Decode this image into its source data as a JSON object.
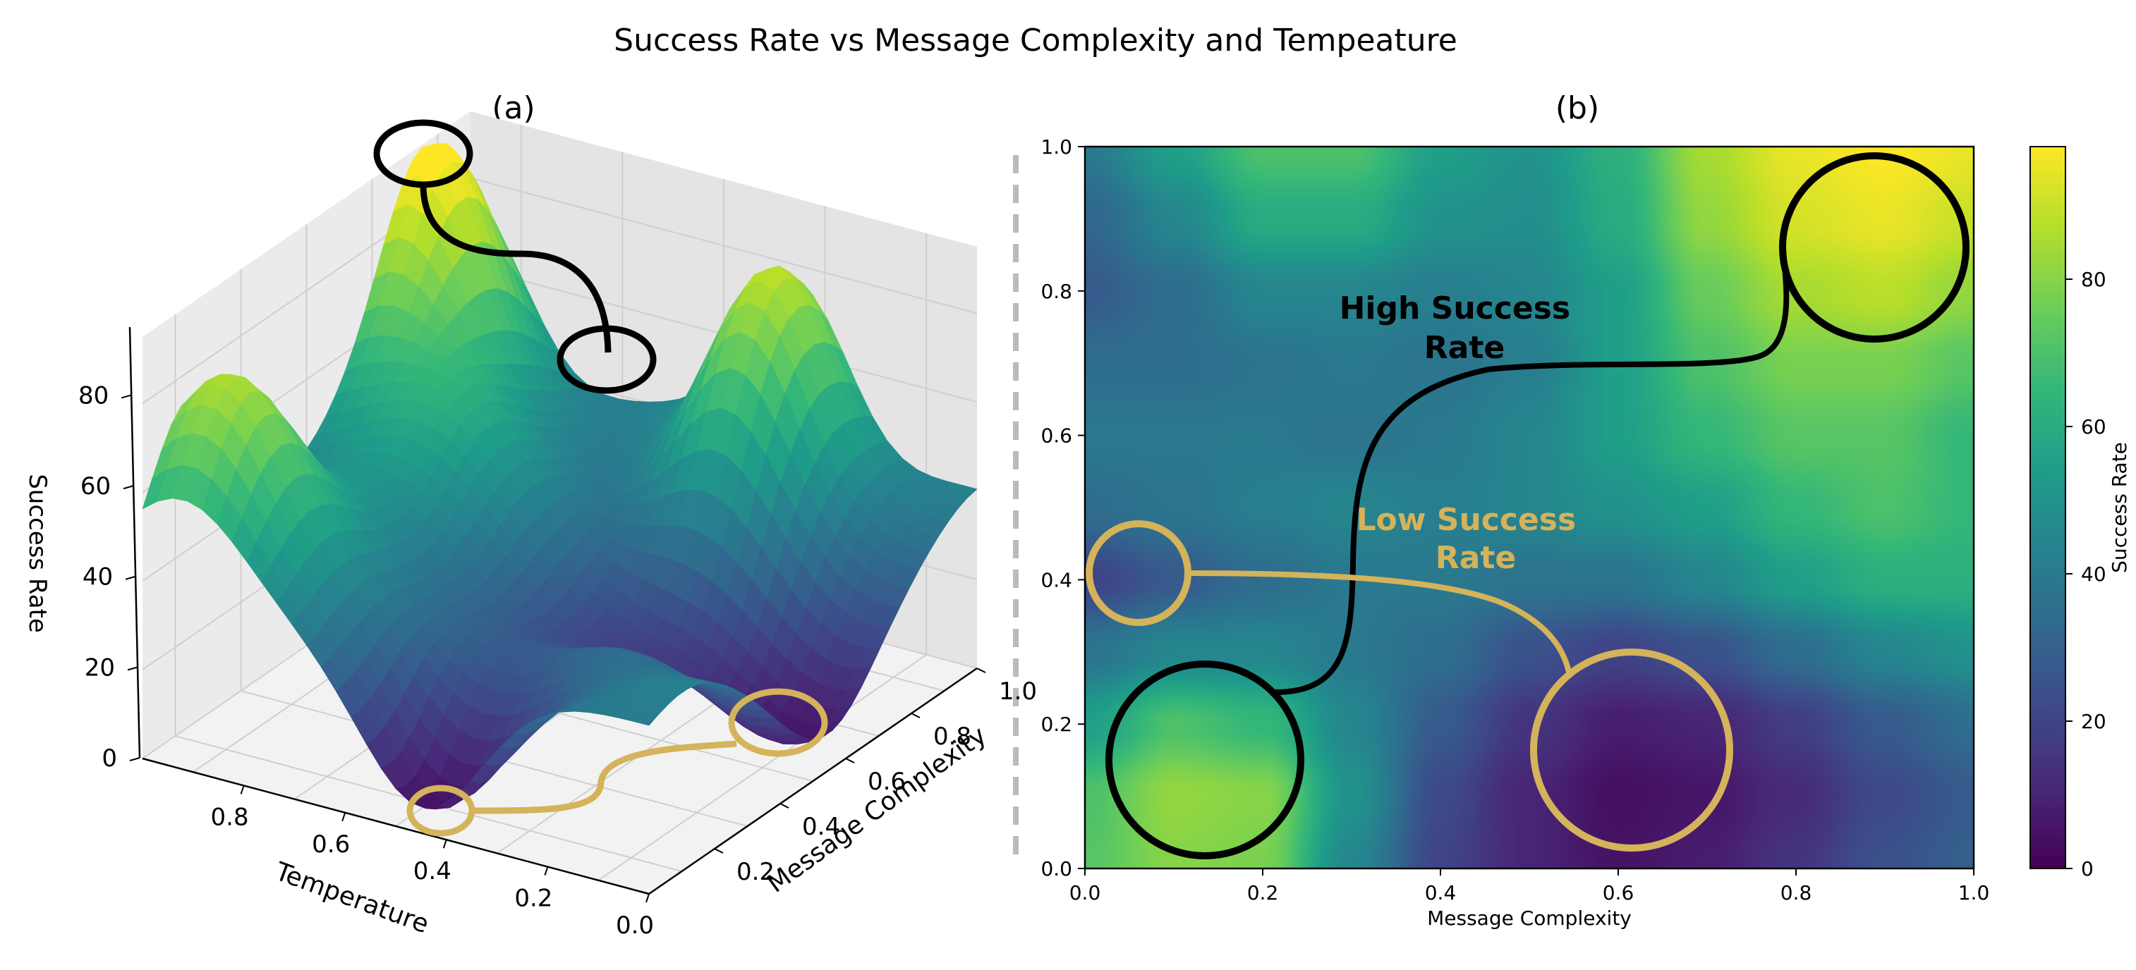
{
  "figure": {
    "title": "Success Rate vs Message Complexity and Tempeature"
  },
  "panels": {
    "a": {
      "label": "(a)"
    },
    "b": {
      "label": "(b)"
    }
  },
  "colors": {
    "viridis": [
      "#440154",
      "#482878",
      "#3e4989",
      "#31688e",
      "#26828e",
      "#1f9e89",
      "#35b779",
      "#6ece58",
      "#b5de2b",
      "#fde725"
    ],
    "high_annotation": "#000000",
    "low_annotation": "#d4b35a",
    "divider": "#bbbbbb"
  },
  "annotations": {
    "high": "High Success Rate",
    "high_line1": "High Success",
    "high_line2": "Rate",
    "low": "Low Success Rate",
    "low_line1": "Low Success",
    "low_line2": "Rate"
  },
  "chart_data": [
    {
      "type": "surface3d",
      "panel": "(a)",
      "xlabel": "Temperature",
      "ylabel": "Message Complexity",
      "zlabel": "Success Rate",
      "x_ticks": [
        "0.0",
        "0.2",
        "0.4",
        "0.6",
        "0.8"
      ],
      "y_ticks": [
        "0.2",
        "0.4",
        "0.6",
        "0.8",
        "1.0"
      ],
      "z_ticks": [
        "0",
        "20",
        "40",
        "60",
        "80"
      ],
      "xlim": [
        0,
        1
      ],
      "ylim": [
        0,
        1
      ],
      "zlim": [
        0,
        95
      ],
      "colormap": "viridis",
      "annotations": [
        {
          "label": "High Success Rate",
          "points": [
            {
              "temperature": 1.0,
              "message_complexity": 0.85,
              "success_rate": 95
            },
            {
              "temperature": 0.35,
              "message_complexity": 0.9,
              "success_rate": 85
            }
          ]
        },
        {
          "label": "Low Success Rate",
          "points": [
            {
              "temperature": 0.45,
              "message_complexity": 0.05,
              "success_rate": 5
            },
            {
              "temperature": 0.05,
              "message_complexity": 0.55,
              "success_rate": 5
            }
          ]
        }
      ]
    },
    {
      "type": "heatmap",
      "panel": "(b)",
      "xlabel": "Message Complexity",
      "ylabel": "",
      "x_ticks": [
        "0.0",
        "0.2",
        "0.4",
        "0.6",
        "0.8",
        "1.0"
      ],
      "y_ticks": [
        "0.0",
        "0.2",
        "0.4",
        "0.6",
        "0.8",
        "1.0"
      ],
      "xlim": [
        0,
        1
      ],
      "ylim": [
        0,
        1
      ],
      "colorbar": {
        "label": "Success Rate",
        "ticks": [
          "0",
          "20",
          "40",
          "60",
          "80"
        ],
        "range": [
          0,
          98
        ]
      },
      "colormap": "viridis",
      "x": [
        0.0,
        0.1,
        0.2,
        0.3,
        0.4,
        0.5,
        0.6,
        0.7,
        0.8,
        0.9,
        1.0
      ],
      "y": [
        0.0,
        0.1,
        0.2,
        0.3,
        0.4,
        0.5,
        0.6,
        0.7,
        0.8,
        0.9,
        1.0
      ],
      "z": [
        [
          72,
          80,
          78,
          45,
          20,
          10,
          5,
          8,
          15,
          25,
          30
        ],
        [
          70,
          82,
          80,
          50,
          22,
          10,
          4,
          6,
          12,
          22,
          28
        ],
        [
          55,
          70,
          65,
          45,
          28,
          15,
          8,
          10,
          18,
          28,
          35
        ],
        [
          38,
          45,
          45,
          40,
          35,
          25,
          20,
          25,
          35,
          45,
          50
        ],
        [
          20,
          28,
          35,
          40,
          40,
          38,
          38,
          45,
          55,
          62,
          62
        ],
        [
          35,
          38,
          42,
          45,
          42,
          45,
          50,
          55,
          65,
          70,
          65
        ],
        [
          40,
          40,
          40,
          38,
          40,
          45,
          55,
          65,
          72,
          72,
          65
        ],
        [
          35,
          35,
          38,
          40,
          38,
          42,
          55,
          70,
          78,
          78,
          72
        ],
        [
          28,
          35,
          45,
          45,
          42,
          45,
          55,
          75,
          85,
          88,
          82
        ],
        [
          32,
          45,
          60,
          60,
          50,
          48,
          60,
          82,
          92,
          95,
          90
        ],
        [
          40,
          55,
          70,
          70,
          55,
          50,
          62,
          85,
          95,
          98,
          95
        ]
      ],
      "annotations": [
        {
          "label": "High Success Rate",
          "circles": [
            {
              "x": 0.89,
              "y": 0.86,
              "r": 0.1
            },
            {
              "x": 0.135,
              "y": 0.15,
              "r": 0.11
            }
          ]
        },
        {
          "label": "Low Success Rate",
          "circles": [
            {
              "x": 0.06,
              "y": 0.41,
              "r": 0.055
            },
            {
              "x": 0.615,
              "y": 0.165,
              "r": 0.11
            }
          ]
        }
      ]
    }
  ]
}
